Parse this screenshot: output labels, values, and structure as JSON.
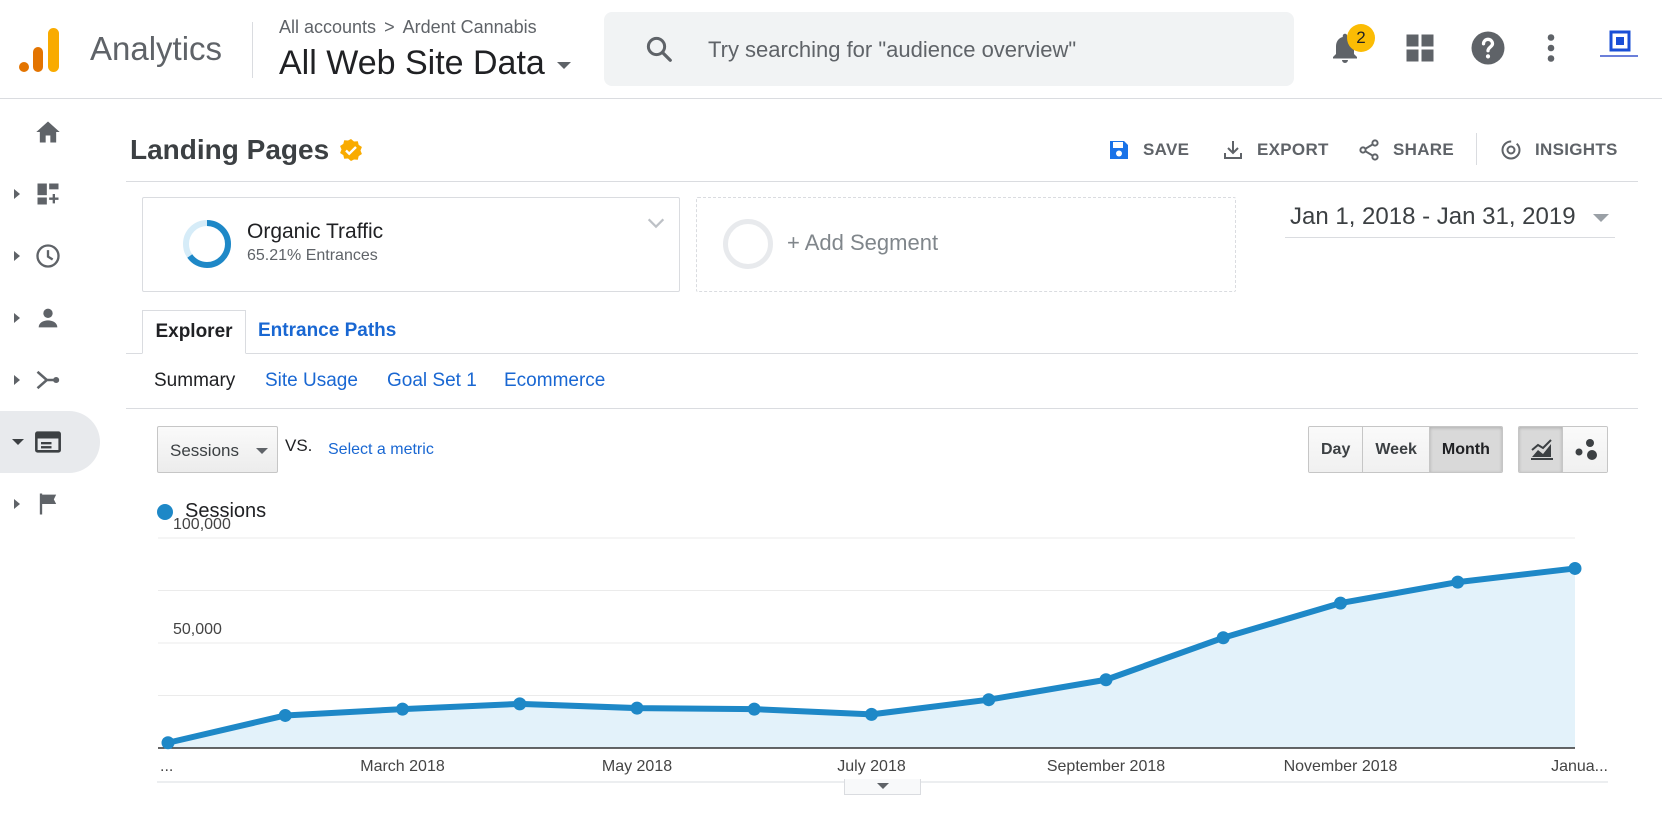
{
  "app": {
    "name": "Analytics"
  },
  "breadcrumb": {
    "root": "All accounts",
    "separator": ">",
    "account": "Ardent Cannabis"
  },
  "property": {
    "view": "All Web Site Data"
  },
  "search": {
    "placeholder": "Try searching for \"audience overview\""
  },
  "notifications": {
    "count": "2"
  },
  "leftnav": {
    "items": [
      {
        "icon": "home-icon"
      },
      {
        "icon": "customization-icon"
      },
      {
        "icon": "realtime-clock-icon"
      },
      {
        "icon": "audience-person-icon"
      },
      {
        "icon": "acquisition-icon"
      },
      {
        "icon": "behavior-icon",
        "active": true
      },
      {
        "icon": "conversions-flag-icon"
      }
    ]
  },
  "report": {
    "title": "Landing Pages"
  },
  "actions": {
    "save": "SAVE",
    "export": "EXPORT",
    "share": "SHARE",
    "insights": "INSIGHTS"
  },
  "segment": {
    "name": "Organic Traffic",
    "detail": "65.21% Entrances",
    "fraction": 0.6521
  },
  "add_segment": {
    "label": "+ Add Segment"
  },
  "date_range": {
    "label": "Jan 1, 2018 - Jan 31, 2019"
  },
  "tabs": {
    "explorer": "Explorer",
    "entrance_paths": "Entrance Paths"
  },
  "subtabs": {
    "summary": "Summary",
    "site_usage": "Site Usage",
    "goal_set": "Goal Set 1",
    "ecommerce": "Ecommerce"
  },
  "metric": {
    "selected": "Sessions",
    "vs": "VS.",
    "select_metric": "Select a metric"
  },
  "period": {
    "day": "Day",
    "week": "Week",
    "month": "Month",
    "active": "Month"
  },
  "colors": {
    "accent": "#1e88c7",
    "area": "#e3f2fa",
    "link": "#1967d2",
    "badge": "#fbbc04"
  },
  "chart_data": {
    "type": "area",
    "series": [
      {
        "name": "Sessions",
        "values": [
          2500,
          15500,
          18500,
          21000,
          19000,
          18500,
          16000,
          23000,
          32500,
          52500,
          69000,
          79000,
          85500
        ]
      }
    ],
    "x_tick_labels": [
      "...",
      "March 2018",
      "May 2018",
      "July 2018",
      "September 2018",
      "November 2018",
      "Janua..."
    ],
    "y_tick_labels": [
      "100,000",
      "50,000"
    ],
    "ylim": [
      0,
      100000
    ],
    "grid": true
  }
}
